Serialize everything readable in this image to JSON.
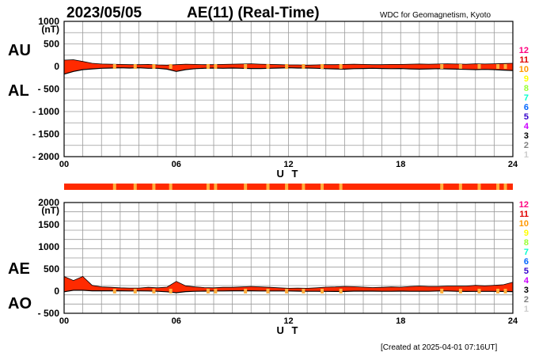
{
  "header": {
    "date": "2023/05/05",
    "title": "AE(11) (Real-Time)",
    "source": "WDC for Geomagnetism, Kyoto"
  },
  "footer": {
    "created": "[Created at 2025-04-01 07:16UT]"
  },
  "chart_data": [
    {
      "type": "area",
      "name": "AU / AL",
      "xlabel": "U T",
      "unit": "(nT)",
      "left_labels": [
        "AU",
        "AL"
      ],
      "xlim": [
        0,
        24
      ],
      "ylim": [
        -2000,
        1000
      ],
      "x_ticks": [
        "00",
        "06",
        "12",
        "18",
        "24"
      ],
      "y_ticks": [
        "1000",
        "500",
        "0",
        "- 500",
        "- 1000",
        "- 1500",
        "- 2000"
      ],
      "y_tick_values": [
        1000,
        500,
        0,
        -500,
        -1000,
        -1500,
        -2000
      ],
      "grid": true,
      "series": [
        {
          "name": "AU",
          "color": "#ff2a00",
          "x": [
            0,
            0.5,
            1,
            1.5,
            2,
            2.5,
            3,
            3.5,
            4,
            4.5,
            5,
            5.5,
            6,
            6.5,
            7,
            7.5,
            8,
            8.5,
            9,
            9.5,
            10,
            10.5,
            11,
            11.5,
            12,
            12.5,
            13,
            13.5,
            14,
            14.5,
            15,
            15.5,
            16,
            16.5,
            17,
            17.5,
            18,
            18.5,
            19,
            19.5,
            20,
            20.5,
            21,
            21.5,
            22,
            22.5,
            23,
            23.5,
            24
          ],
          "values": [
            140,
            150,
            110,
            70,
            55,
            50,
            45,
            40,
            40,
            45,
            35,
            30,
            40,
            50,
            45,
            40,
            40,
            45,
            50,
            55,
            60,
            50,
            45,
            40,
            35,
            35,
            30,
            35,
            40,
            40,
            45,
            50,
            45,
            40,
            40,
            45,
            45,
            50,
            55,
            50,
            55,
            60,
            55,
            50,
            60,
            55,
            60,
            65,
            70
          ]
        },
        {
          "name": "AL",
          "color": "#000000",
          "x": [
            0,
            0.5,
            1,
            1.5,
            2,
            2.5,
            3,
            3.5,
            4,
            4.5,
            5,
            5.5,
            6,
            6.5,
            7,
            7.5,
            8,
            8.5,
            9,
            9.5,
            10,
            10.5,
            11,
            11.5,
            12,
            12.5,
            13,
            13.5,
            14,
            14.5,
            15,
            15.5,
            16,
            16.5,
            17,
            17.5,
            18,
            18.5,
            19,
            19.5,
            20,
            20.5,
            21,
            21.5,
            22,
            22.5,
            23,
            23.5,
            24
          ],
          "values": [
            -170,
            -110,
            -70,
            -55,
            -40,
            -35,
            -30,
            -35,
            -30,
            -40,
            -40,
            -60,
            -110,
            -70,
            -50,
            -40,
            -35,
            -40,
            -35,
            -40,
            -45,
            -45,
            -40,
            -35,
            -30,
            -35,
            -35,
            -40,
            -50,
            -55,
            -60,
            -50,
            -45,
            -40,
            -45,
            -50,
            -45,
            -55,
            -60,
            -55,
            -50,
            -55,
            -60,
            -65,
            -70,
            -65,
            -70,
            -80,
            -90
          ]
        }
      ]
    },
    {
      "type": "area",
      "name": "AE / AO",
      "xlabel": "U T",
      "unit": "(nT)",
      "left_labels": [
        "AE",
        "AO"
      ],
      "xlim": [
        0,
        24
      ],
      "ylim": [
        -500,
        2000
      ],
      "x_ticks": [
        "00",
        "06",
        "12",
        "18",
        "24"
      ],
      "y_ticks": [
        "2000",
        "1500",
        "1000",
        "500",
        "0",
        "- 500"
      ],
      "y_tick_values": [
        2000,
        1500,
        1000,
        500,
        0,
        -500
      ],
      "grid": true,
      "series": [
        {
          "name": "AE",
          "color": "#ff2a00",
          "x": [
            0,
            0.5,
            1,
            1.5,
            2,
            2.5,
            3,
            3.5,
            4,
            4.5,
            5,
            5.5,
            6,
            6.5,
            7,
            7.5,
            8,
            8.5,
            9,
            9.5,
            10,
            10.5,
            11,
            11.5,
            12,
            12.5,
            13,
            13.5,
            14,
            14.5,
            15,
            15.5,
            16,
            16.5,
            17,
            17.5,
            18,
            18.5,
            19,
            19.5,
            20,
            20.5,
            21,
            21.5,
            22,
            22.5,
            23,
            23.5,
            24
          ],
          "values": [
            330,
            240,
            330,
            130,
            95,
            85,
            75,
            70,
            70,
            85,
            75,
            90,
            220,
            120,
            95,
            80,
            75,
            85,
            85,
            95,
            105,
            95,
            85,
            75,
            65,
            70,
            65,
            75,
            90,
            95,
            105,
            100,
            90,
            80,
            85,
            95,
            90,
            105,
            115,
            105,
            105,
            115,
            115,
            115,
            130,
            120,
            130,
            145,
            200
          ]
        },
        {
          "name": "AO",
          "color": "#000000",
          "x": [
            0,
            0.5,
            1,
            1.5,
            2,
            2.5,
            3,
            3.5,
            4,
            4.5,
            5,
            5.5,
            6,
            6.5,
            7,
            7.5,
            8,
            8.5,
            9,
            9.5,
            10,
            10.5,
            11,
            11.5,
            12,
            12.5,
            13,
            13.5,
            14,
            14.5,
            15,
            15.5,
            16,
            16.5,
            17,
            17.5,
            18,
            18.5,
            19,
            19.5,
            20,
            20.5,
            21,
            21.5,
            22,
            22.5,
            23,
            23.5,
            24
          ],
          "values": [
            -15,
            20,
            20,
            8,
            8,
            8,
            8,
            3,
            5,
            3,
            -3,
            -15,
            -35,
            -10,
            -3,
            0,
            3,
            3,
            8,
            8,
            8,
            3,
            3,
            3,
            3,
            0,
            -3,
            -3,
            -5,
            -8,
            -8,
            0,
            0,
            0,
            -3,
            -3,
            0,
            -3,
            -3,
            -3,
            3,
            3,
            -3,
            -8,
            -5,
            -5,
            -5,
            -8,
            -10
          ]
        }
      ]
    }
  ],
  "station_bar": {
    "bar_color": "#ff2a00",
    "mark_color": "#ffb040",
    "marks_ut": [
      2.7,
      3.8,
      4.8,
      5.7,
      7.7,
      8.1,
      9.7,
      10.9,
      11.9,
      12.8,
      13.8,
      14.8,
      20.2,
      21.2,
      22.2,
      23.2,
      23.6
    ]
  },
  "marker_ut": [
    2.7,
    3.8,
    4.8,
    5.7,
    7.7,
    8.1,
    9.7,
    10.9,
    11.9,
    12.8,
    13.8,
    14.8,
    20.2,
    21.2,
    22.2,
    23.2,
    23.6
  ],
  "station_count_key": [
    {
      "label": "12",
      "color": "#ff007f"
    },
    {
      "label": "11",
      "color": "#e00000"
    },
    {
      "label": "10",
      "color": "#ff9900"
    },
    {
      "label": "9",
      "color": "#ffff00"
    },
    {
      "label": "8",
      "color": "#99ff33"
    },
    {
      "label": "7",
      "color": "#00ffcc"
    },
    {
      "label": "6",
      "color": "#0066ff"
    },
    {
      "label": "5",
      "color": "#3300cc"
    },
    {
      "label": "4",
      "color": "#cc00ff"
    },
    {
      "label": "3",
      "color": "#000000"
    },
    {
      "label": "2",
      "color": "#808080"
    },
    {
      "label": "1",
      "color": "#cccccc"
    }
  ]
}
